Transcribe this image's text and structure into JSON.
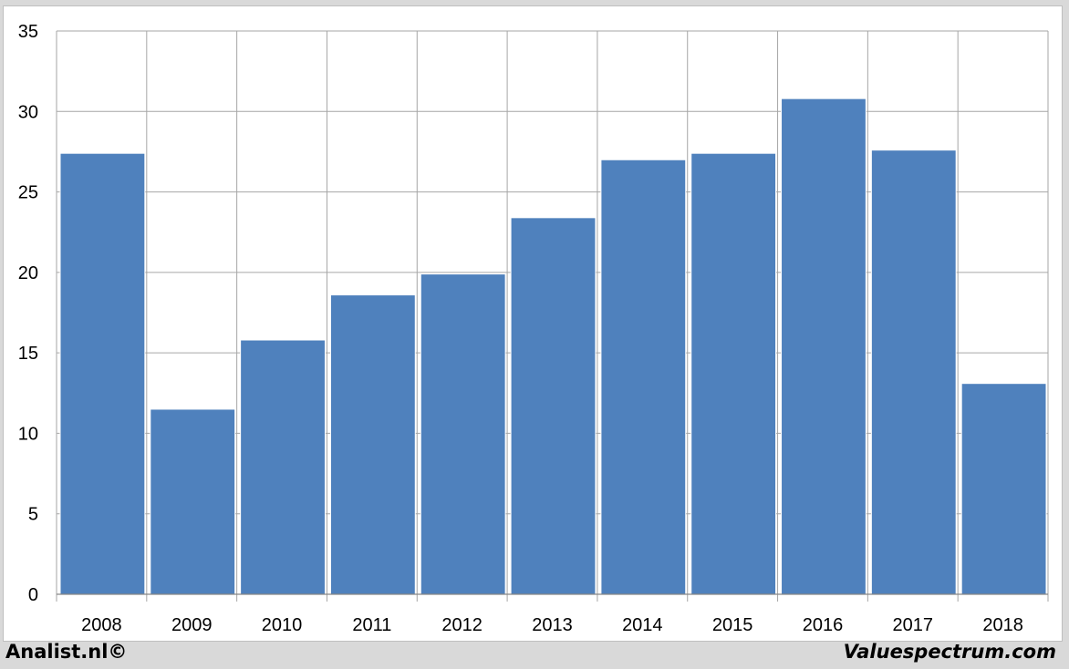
{
  "footer": {
    "left_text": "Analist.nl©",
    "right_text": "Valuespectrum.com"
  },
  "colors": {
    "bar": "#4f81bd",
    "grid": "#a6a6a6",
    "background": "#ffffff",
    "outer_background": "#d9d9d9"
  },
  "chart_data": {
    "type": "bar",
    "categories": [
      "2008",
      "2009",
      "2010",
      "2011",
      "2012",
      "2013",
      "2014",
      "2015",
      "2016",
      "2017",
      "2018"
    ],
    "values": [
      27.4,
      11.5,
      15.8,
      18.6,
      19.9,
      23.4,
      27.0,
      27.4,
      30.8,
      27.6,
      13.1
    ],
    "ylim": [
      0,
      35
    ],
    "yticks": [
      0,
      5,
      10,
      15,
      20,
      25,
      30,
      35
    ],
    "title": "",
    "xlabel": "",
    "ylabel": "",
    "grid": "both",
    "legend": "none"
  }
}
